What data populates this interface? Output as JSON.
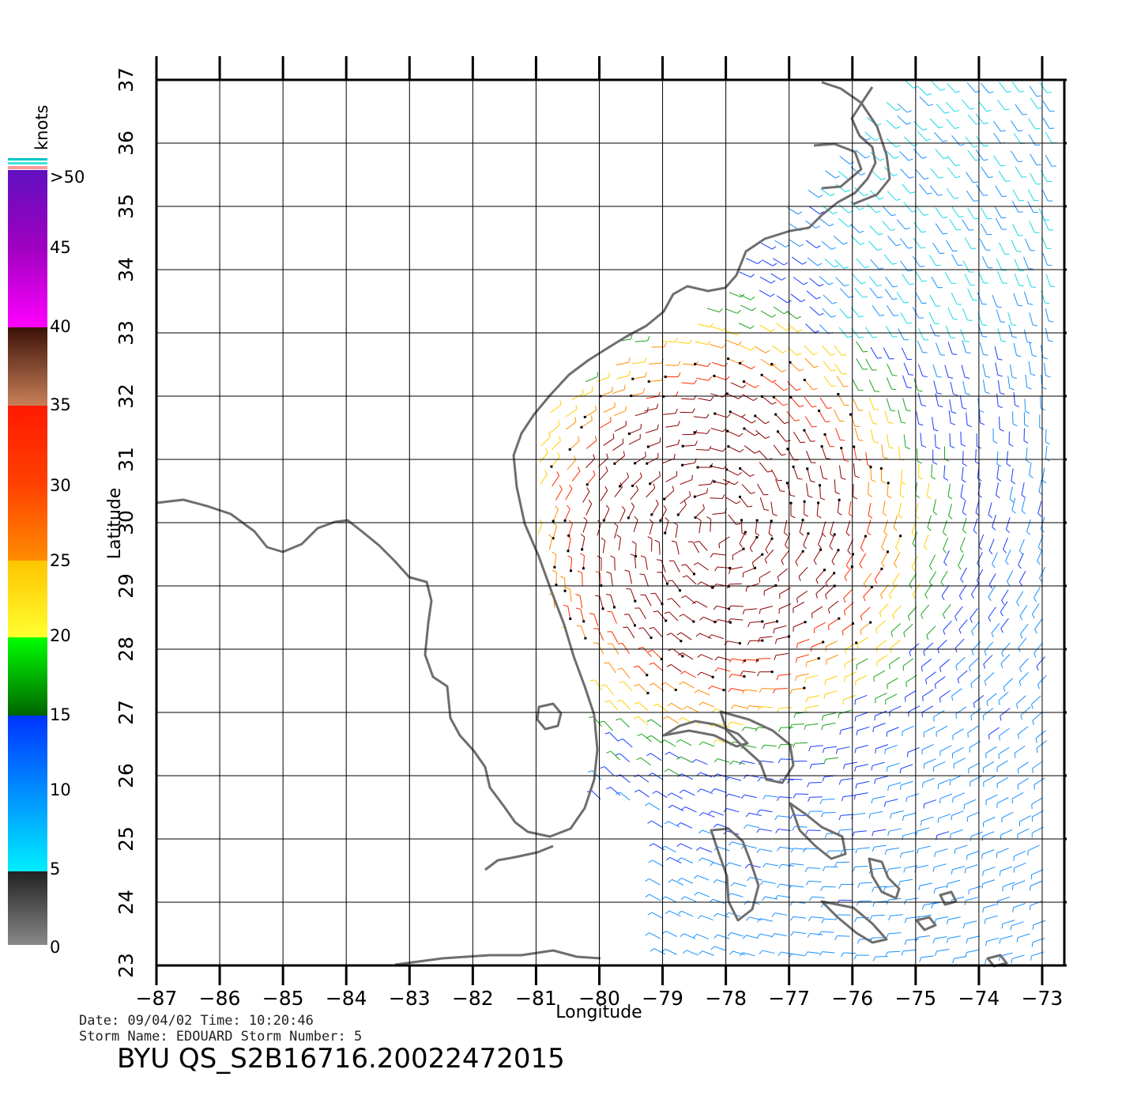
{
  "map": {
    "lon_range": [
      -87,
      -73
    ],
    "lat_range": [
      23,
      37
    ],
    "lon_ticks": [
      "−87",
      "−86",
      "−85",
      "−84",
      "−83",
      "−82",
      "−81",
      "−80",
      "−79",
      "−78",
      "−77",
      "−76",
      "−75",
      "−74",
      "−73"
    ],
    "lat_ticks": [
      "23",
      "24",
      "25",
      "26",
      "27",
      "28",
      "29",
      "30",
      "31",
      "32",
      "33",
      "34",
      "35",
      "36",
      "37"
    ],
    "xlabel": "Longitude",
    "ylabel": "Latitude",
    "grid": true,
    "coastline_color": "#6e6e6e",
    "storm_center": {
      "lon": -78.1,
      "lat": 29.9
    }
  },
  "legend": {
    "title": "knots",
    "labels": [
      ">50",
      "45",
      "40",
      "35",
      "30",
      "25",
      "20",
      "15",
      "10",
      "5",
      "0"
    ],
    "colors": {
      "0_5": [
        "#888888",
        "#222222"
      ],
      "5_15": [
        "#00eeff",
        "#0033ff"
      ],
      "15_20": [
        "#006400",
        "#00ff00"
      ],
      "20_25": [
        "#ffff30",
        "#ffc400"
      ],
      "25_35": [
        "#ff8c00",
        "#ff1a00"
      ],
      "35_40": [
        "#c88058",
        "#3c1208"
      ],
      "40_50": [
        "#ff00ff",
        "#6010c0"
      ]
    }
  },
  "info": {
    "line1": "Date: 09/04/02   Time: 10:20:46",
    "line2": "Storm Name: EDOUARD   Storm Number: 5",
    "product": "BYU QS_S2B16716.20022472015"
  }
}
